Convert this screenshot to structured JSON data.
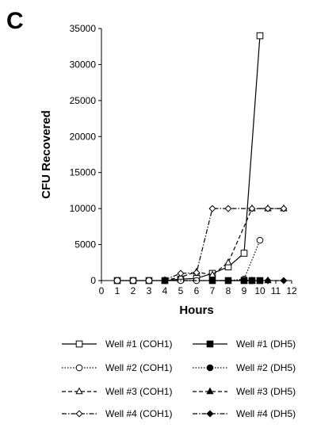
{
  "panel_letter": "C",
  "chart_data": {
    "type": "line",
    "xlabel": "Hours",
    "ylabel": "CFU  Recovered",
    "xlim": [
      0,
      12
    ],
    "ylim": [
      0,
      35000
    ],
    "x_ticks": [
      0,
      1,
      2,
      3,
      4,
      5,
      6,
      7,
      8,
      9,
      10,
      11,
      12
    ],
    "y_ticks": [
      0,
      5000,
      10000,
      15000,
      20000,
      25000,
      30000,
      35000
    ],
    "grid": false,
    "legend_position": "bottom",
    "series": [
      {
        "name": "Well #1 (COH1)",
        "marker": "open-square",
        "line": "solid",
        "color": "#000000",
        "x": [
          1,
          2,
          3,
          4,
          5,
          6,
          7,
          8,
          9,
          10
        ],
        "y": [
          0,
          0,
          0,
          0,
          200,
          300,
          1000,
          1900,
          3800,
          34000
        ]
      },
      {
        "name": "Well #2 (COH1)",
        "marker": "open-circle",
        "line": "dotted",
        "color": "#000000",
        "x": [
          1,
          2,
          3,
          4,
          5,
          6,
          7,
          8,
          9,
          10
        ],
        "y": [
          0,
          0,
          0,
          0,
          0,
          0,
          0,
          0,
          200,
          5600
        ]
      },
      {
        "name": "Well #3 (COH1)",
        "marker": "open-triangle",
        "line": "dashed",
        "color": "#000000",
        "x": [
          4,
          5,
          6,
          7,
          8,
          9.5,
          10.5,
          11.5
        ],
        "y": [
          0,
          500,
          1200,
          800,
          2500,
          10000,
          10000,
          10000
        ]
      },
      {
        "name": "Well #4 (COH1)",
        "marker": "open-diamond",
        "line": "dashdot",
        "color": "#000000",
        "x": [
          4,
          5,
          6,
          7,
          8,
          9.5,
          10.5,
          11.5
        ],
        "y": [
          100,
          1000,
          1100,
          10000,
          10000,
          10000,
          10000,
          10000
        ]
      },
      {
        "name": "Well #1 (DH5)",
        "marker": "filled-square",
        "line": "solid",
        "color": "#000000",
        "x": [
          7,
          8,
          9,
          9.5,
          10
        ],
        "y": [
          0,
          0,
          0,
          0,
          0
        ]
      },
      {
        "name": "Well #2 (DH5)",
        "marker": "filled-circle",
        "line": "dotted",
        "color": "#000000",
        "x": [
          8,
          9,
          9.5
        ],
        "y": [
          0,
          0,
          0
        ]
      },
      {
        "name": "Well #3 (DH5)",
        "marker": "filled-triangle",
        "line": "dashed",
        "color": "#000000",
        "x": [
          9,
          9.5,
          10.5
        ],
        "y": [
          0,
          0,
          0
        ]
      },
      {
        "name": "Well #4 (DH5)",
        "marker": "filled-diamond",
        "line": "dashdot",
        "color": "#000000",
        "x": [
          4,
          7,
          9.5,
          10.5,
          11.5
        ],
        "y": [
          0,
          0,
          0,
          0,
          0
        ]
      }
    ]
  }
}
